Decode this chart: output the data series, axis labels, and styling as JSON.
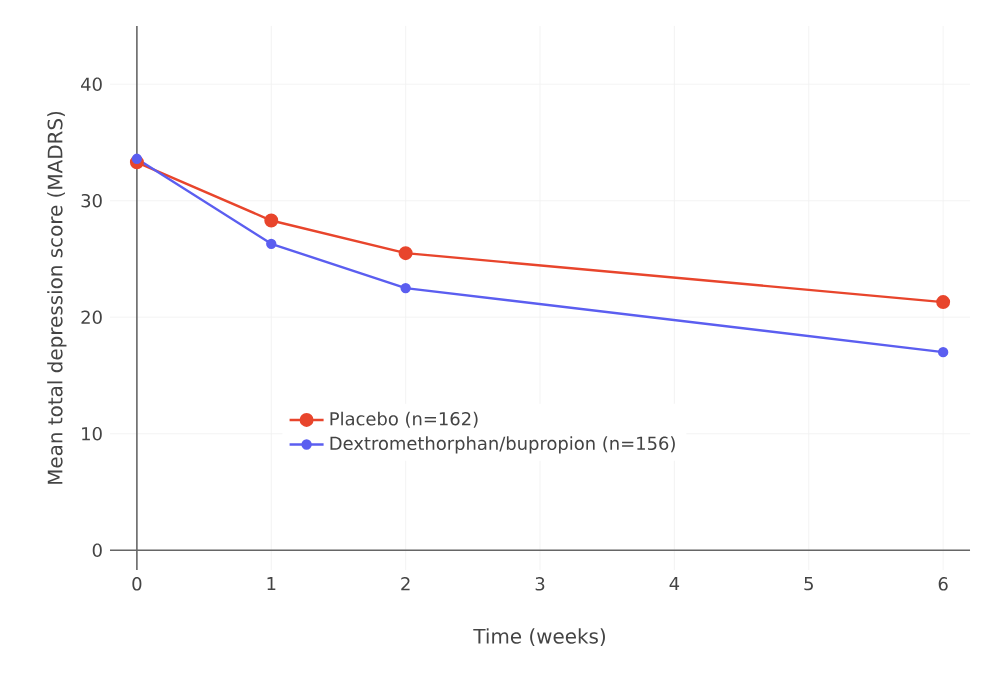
{
  "chart_data": {
    "type": "line",
    "xlabel": "Time (weeks)",
    "ylabel": "Mean total depression score (MADRS)",
    "x": [
      0,
      1,
      2,
      6
    ],
    "series": [
      {
        "name": "Placebo (n=162)",
        "color": "#e8452c",
        "values": [
          33.3,
          28.3,
          25.5,
          21.3
        ]
      },
      {
        "name": "Dextromethorphan/bupropion (n=156)",
        "color": "#5b5ef0",
        "values": [
          33.6,
          26.3,
          22.5,
          17.0
        ]
      }
    ],
    "xlim": [
      -0.2,
      6.2
    ],
    "ylim": [
      -1.7,
      45
    ],
    "xticks": [
      0,
      1,
      2,
      3,
      4,
      5,
      6
    ],
    "yticks": [
      0,
      10,
      20,
      30,
      40
    ],
    "grid": true,
    "legend": "bottom left",
    "marker": "circle",
    "line_style": "solid"
  }
}
